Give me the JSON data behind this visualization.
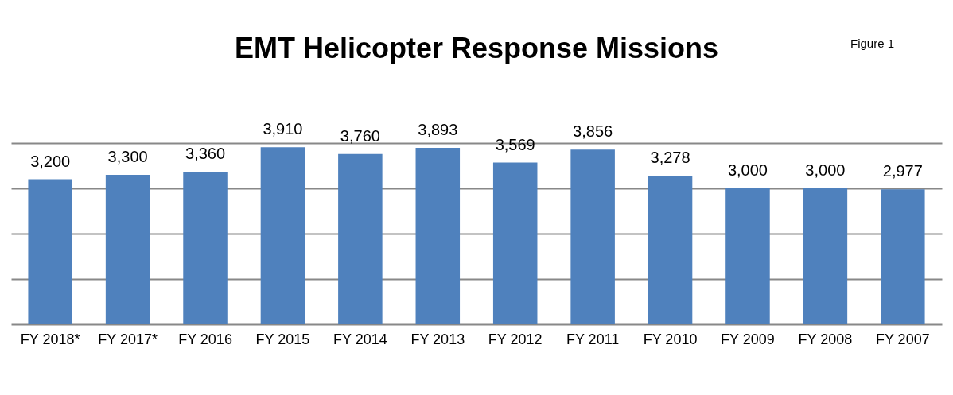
{
  "chart_data": {
    "type": "bar",
    "title": "EMT Helicopter Response Missions",
    "annotations": [
      "Figure 1"
    ],
    "categories": [
      "FY 2018*",
      "FY 2017*",
      "FY 2016",
      "FY 2015",
      "FY 2014",
      "FY 2013",
      "FY 2012",
      "FY 2011",
      "FY 2010",
      "FY 2009",
      "FY 2008",
      "FY 2007"
    ],
    "values": [
      3200,
      3300,
      3360,
      3910,
      3760,
      3893,
      3569,
      3856,
      3278,
      3000,
      3000,
      2977
    ],
    "value_labels": [
      "3,200",
      "3,300",
      "3,360",
      "3,910",
      "3,760",
      "3,893",
      "3,569",
      "3,856",
      "3,278",
      "3,000",
      "3,000",
      "2,977"
    ],
    "color": "#4f81bd",
    "grid": "y",
    "tick_labels": "x"
  }
}
